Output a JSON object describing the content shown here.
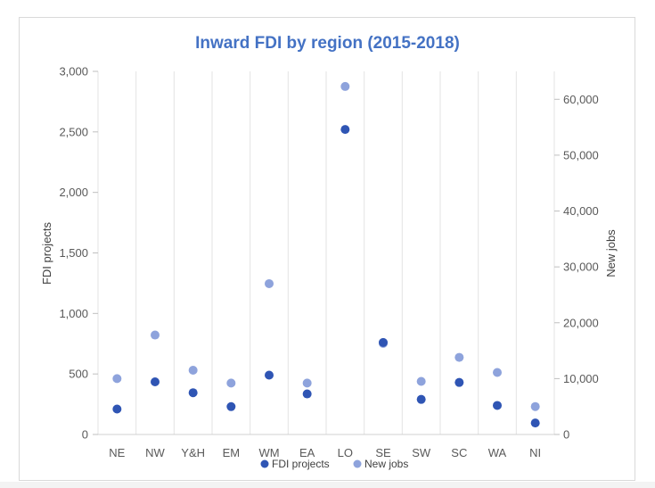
{
  "chart_data": {
    "type": "scatter",
    "title": "Inward FDI by region (2015-2018)",
    "categories": [
      "NE",
      "NW",
      "Y&H",
      "EM",
      "WM",
      "EA",
      "LO",
      "SE",
      "SW",
      "SC",
      "WA",
      "NI"
    ],
    "y_left": {
      "label": "FDI projects",
      "range": [
        0,
        3000
      ],
      "ticks": [
        "0",
        "500",
        "1,000",
        "1,500",
        "2,000",
        "2,500",
        "3,000"
      ]
    },
    "y_right": {
      "label": "New jobs",
      "range": [
        0,
        65000
      ],
      "ticks": [
        "0",
        "10,000",
        "20,000",
        "30,000",
        "40,000",
        "50,000",
        "60,000"
      ]
    },
    "grid": "vertical",
    "legend_position": "bottom",
    "series": [
      {
        "name": "FDI projects",
        "axis": "left",
        "color": "#2f55b4",
        "values": [
          210,
          435,
          345,
          230,
          490,
          335,
          2520,
          760,
          290,
          430,
          240,
          95
        ]
      },
      {
        "name": "New jobs",
        "axis": "right",
        "color": "#8ea3dc",
        "values": [
          10000,
          17800,
          11500,
          9200,
          27000,
          9200,
          62300,
          16300,
          9500,
          13800,
          11100,
          5000
        ]
      }
    ]
  }
}
